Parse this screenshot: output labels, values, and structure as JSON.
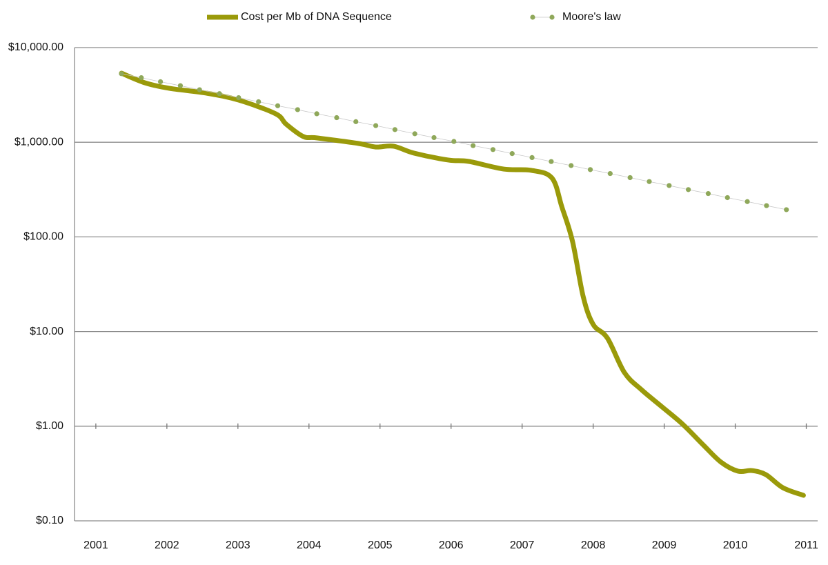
{
  "chart_data": {
    "type": "line",
    "log_scale_y": true,
    "grid": true,
    "legend": "top",
    "xlim": [
      2000.7,
      2011.16
    ],
    "xticks": [
      2001,
      2002,
      2003,
      2004,
      2005,
      2006,
      2007,
      2008,
      2009,
      2010,
      2011
    ],
    "ylim": [
      0.1,
      10000
    ],
    "yticks": [
      {
        "value": 0.1,
        "label": "$0.10"
      },
      {
        "value": 1,
        "label": "$1.00"
      },
      {
        "value": 10,
        "label": "$10.00"
      },
      {
        "value": 100,
        "label": "$100.00"
      },
      {
        "value": 1000,
        "label": "$1,000.00"
      },
      {
        "value": 10000,
        "label": "$10,000.00"
      }
    ],
    "series": [
      {
        "name": "Cost per Mb of DNA Sequence",
        "color": "#9a9a0a",
        "style": "line",
        "x": [
          2001.36,
          2001.69,
          2002.03,
          2002.56,
          2003.01,
          2003.53,
          2003.68,
          2003.92,
          2004.12,
          2004.7,
          2004.94,
          2005.19,
          2005.48,
          2005.96,
          2006.25,
          2006.74,
          2007.13,
          2007.42,
          2007.56,
          2007.71,
          2007.86,
          2008.0,
          2008.2,
          2008.44,
          2008.68,
          2008.97,
          2009.26,
          2009.55,
          2009.8,
          2010.04,
          2010.23,
          2010.43,
          2010.67,
          2010.96
        ],
        "values": [
          5370,
          4250,
          3720,
          3300,
          2790,
          2000,
          1550,
          1150,
          1110,
          970,
          891,
          908,
          767,
          649,
          627,
          521,
          505,
          419,
          207,
          89.5,
          23.4,
          11.9,
          8.54,
          3.69,
          2.43,
          1.6,
          1.05,
          0.634,
          0.417,
          0.335,
          0.34,
          0.308,
          0.224,
          0.186
        ]
      },
      {
        "name": "Moore's law",
        "color": "#8fa85a",
        "style": "dots",
        "x": [
          2001.36,
          2001.64,
          2001.91,
          2002.19,
          2002.46,
          2002.74,
          2003.01,
          2003.29,
          2003.56,
          2003.84,
          2004.11,
          2004.39,
          2004.66,
          2004.94,
          2005.21,
          2005.49,
          2005.76,
          2006.04,
          2006.31,
          2006.59,
          2006.86,
          2007.14,
          2007.41,
          2007.69,
          2007.96,
          2008.24,
          2008.52,
          2008.79,
          2009.07,
          2009.34,
          2009.62,
          2009.89,
          2010.17,
          2010.44,
          2010.72
        ],
        "values": [
          5300,
          4810,
          4360,
          3960,
          3590,
          3260,
          2960,
          2680,
          2430,
          2210,
          2000,
          1820,
          1650,
          1500,
          1360,
          1230,
          1120,
          1020,
          922,
          837,
          759,
          689,
          625,
          567,
          514,
          467,
          423,
          384,
          349,
          316,
          287,
          260,
          236,
          214,
          194
        ]
      }
    ]
  }
}
